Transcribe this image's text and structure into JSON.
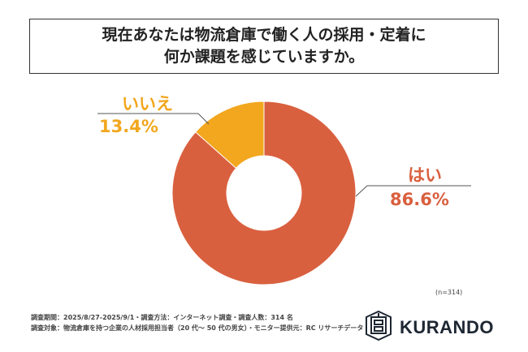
{
  "title_lines": [
    "現在あなたは物流倉庫で働く人の採用・定着に",
    "何か課題を感じていますか。"
  ],
  "chart_data": {
    "type": "pie",
    "variant": "donut",
    "categories": [
      "はい",
      "いいえ"
    ],
    "values": [
      86.6,
      13.4
    ],
    "labels": [
      "86.6%",
      "13.4%"
    ],
    "colors": [
      "#D9603F",
      "#F2A71E"
    ]
  },
  "sample_size": "(n=314)",
  "footer": [
    "調査期間：2025/8/27-2025/9/1・調査方法：インターネット調査・調査人数：314 名",
    "調査対象：物流倉庫を持つ企業の人材採用担当者（20 代～ 50 代の男女）・モニター提供元：RC リサーチデータ"
  ],
  "logo": {
    "text": "KURANDO"
  }
}
